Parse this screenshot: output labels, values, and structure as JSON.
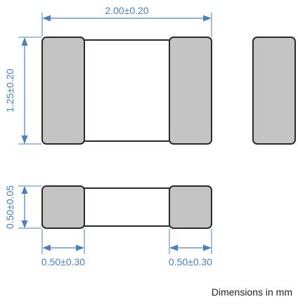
{
  "dimensions": {
    "length": "2.00±0.20",
    "width": "1.25±0.20",
    "height": "0.50±0.05",
    "terminal_left": "0.50±0.30",
    "terminal_right": "0.50±0.30"
  },
  "note": "Dimensions in mm",
  "colors": {
    "dimension": "#4a7fc1",
    "terminal_fill": "#c4c4c4",
    "outline": "#2b2b2b"
  }
}
